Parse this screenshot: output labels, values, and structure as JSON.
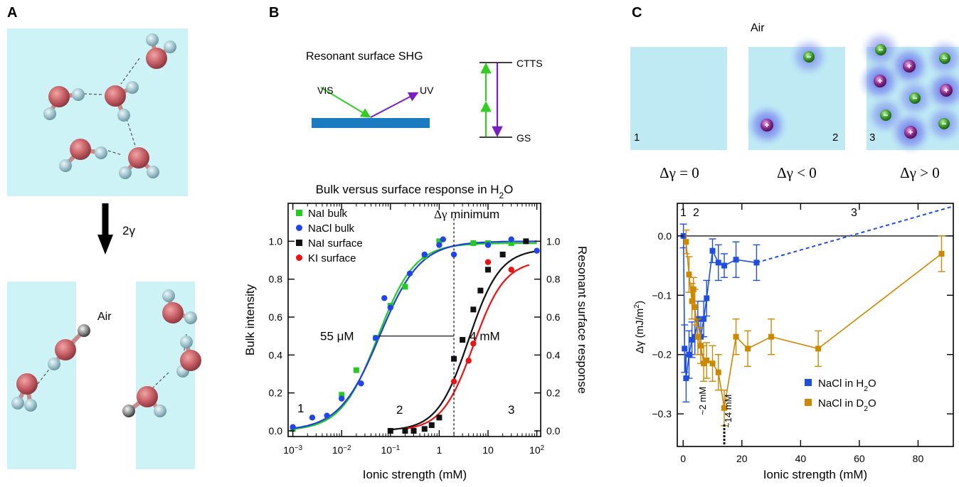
{
  "panels": {
    "a": {
      "label": "A",
      "arrow_label": "2γ",
      "air_label": "Air"
    },
    "b": {
      "label": "B",
      "schematic": {
        "title": "Resonant surface SHG",
        "vis": "VIS",
        "uv": "UV",
        "ctts": "CTTS",
        "gs": "GS"
      }
    },
    "c": {
      "label": "C",
      "air_label": "Air",
      "box_numbers": [
        "1",
        "2",
        "3"
      ],
      "gamma_labels": [
        "Δγ = 0",
        "Δγ < 0",
        "Δγ > 0"
      ],
      "ion_plus": "+",
      "ion_minus": "−"
    }
  },
  "chart_data": [
    {
      "type": "scatter",
      "title_parts": [
        "Bulk versus surface response in H",
        "2",
        "O"
      ],
      "xlabel": "Ionic strength (mM)",
      "ylabel": "Bulk intensity",
      "y2label": "Resonant surface response",
      "xscale": "log",
      "xlim": [
        0.0008,
        120
      ],
      "ylim": [
        -0.03,
        1.2
      ],
      "xticks": [
        0.001,
        0.01,
        0.1,
        1,
        10,
        100
      ],
      "xtick_labels": [
        [
          "10",
          "−3"
        ],
        [
          "10",
          "−2"
        ],
        [
          "10",
          "−1"
        ],
        [
          "1",
          ""
        ],
        [
          "10",
          ""
        ],
        [
          "10",
          "2"
        ]
      ],
      "yticks": [
        0,
        0.2,
        0.4,
        0.6,
        0.8,
        1.0
      ],
      "ytick_labels": [
        "0.0",
        "0.2",
        "0.4",
        "0.6",
        "0.8",
        "1.0"
      ],
      "legend_placement": "top-left",
      "series": [
        {
          "name": "NaI bulk",
          "marker": "square",
          "color": "#22cc22",
          "x": [
            0.001,
            0.01,
            0.02,
            0.05,
            0.1,
            0.2,
            0.5,
            1,
            5,
            10,
            30
          ],
          "y": [
            0.01,
            0.19,
            0.32,
            0.49,
            0.66,
            0.76,
            0.92,
            1.0,
            0.99,
            0.99,
            0.99
          ]
        },
        {
          "name": "NaCl bulk",
          "marker": "circle",
          "color": "#2244ee",
          "x": [
            0.001,
            0.0025,
            0.005,
            0.01,
            0.025,
            0.05,
            0.075,
            0.1,
            0.25,
            0.5,
            1,
            1.2,
            2,
            10,
            30,
            100
          ],
          "y": [
            0.02,
            0.07,
            0.08,
            0.17,
            0.25,
            0.49,
            0.7,
            0.65,
            0.83,
            0.93,
            0.98,
            1.01,
            0.93,
            0.98,
            1.01,
            0.95
          ]
        },
        {
          "name": "NaI surface",
          "marker": "square",
          "color": "#111111",
          "x": [
            0.1,
            0.2,
            0.3,
            0.5,
            0.7,
            1,
            2,
            3,
            5,
            7,
            10,
            20,
            60
          ],
          "y": [
            0.0,
            0.0,
            0.0,
            0.01,
            0.03,
            0.07,
            0.38,
            0.48,
            0.64,
            0.74,
            0.85,
            0.93,
            1.0
          ]
        },
        {
          "name": "KI surface",
          "marker": "circle",
          "color": "#ee1111",
          "x": [
            2,
            4,
            5,
            10,
            30
          ],
          "y": [
            0.26,
            0.37,
            0.46,
            0.89,
            0.85
          ]
        }
      ],
      "fits": [
        {
          "color": "#22cc22",
          "x0": 0.055,
          "n": 1.15,
          "top": 0.99,
          "xmin": 0.001,
          "xmax": 100
        },
        {
          "color": "#1f3fe0",
          "x0": 0.06,
          "n": 1.05,
          "top": 1.0,
          "xmin": 0.001,
          "xmax": 100
        },
        {
          "color": "#111111",
          "x0": 4,
          "n": 1.35,
          "top": 0.96,
          "xmin": 0.1,
          "xmax": 100
        },
        {
          "color": "#ee1111",
          "x0": 5,
          "n": 1.35,
          "top": 0.9,
          "xmin": 0.2,
          "xmax": 70
        }
      ],
      "minimum_line_x": 2,
      "half_line": {
        "x1": 0.055,
        "x2": 2,
        "y": 0.5
      },
      "annotations": {
        "min_prefix": "Δγ",
        "min_rest": " minimum",
        "left_value": "55 μM",
        "right_value": "4 mM",
        "regions": [
          "1",
          "2",
          "3"
        ]
      }
    },
    {
      "type": "line",
      "xlabel": "Ionic strength (mM)",
      "ylabel_parts": [
        "Δγ (mJ/m",
        "2",
        ")"
      ],
      "xlim": [
        -2,
        92
      ],
      "ylim": [
        -0.355,
        0.055
      ],
      "xticks": [
        0,
        20,
        40,
        60,
        80
      ],
      "xtick_labels": [
        "0",
        "20",
        "40",
        "60",
        "80"
      ],
      "yticks": [
        0,
        -0.1,
        -0.2,
        -0.3
      ],
      "ytick_labels": [
        "0.0",
        "−0.1",
        "−0.2",
        "−0.3"
      ],
      "legend_placement": "bottom-right",
      "zero_line": true,
      "series": [
        {
          "name_parts": [
            "NaCl in H",
            "2",
            "O"
          ],
          "color": "#1f4fe0",
          "x": [
            0.1,
            0.5,
            1,
            2,
            3,
            4,
            5,
            6,
            7,
            8,
            10,
            12,
            14,
            18,
            25
          ],
          "y": [
            0.0,
            -0.19,
            -0.24,
            -0.2,
            -0.175,
            -0.17,
            -0.14,
            -0.17,
            -0.14,
            -0.105,
            -0.025,
            -0.045,
            -0.05,
            -0.04,
            -0.045
          ],
          "err": [
            0.02,
            0.04,
            0.04,
            0.04,
            0.03,
            0.03,
            0.03,
            0.03,
            0.03,
            0.03,
            0.02,
            0.03,
            0.02,
            0.03,
            0.03
          ],
          "extension": {
            "x": [
              25,
              92
            ],
            "y": [
              -0.045,
              0.05
            ]
          }
        },
        {
          "name_parts": [
            "NaCl in D",
            "2",
            "O"
          ],
          "color": "#cc8800",
          "x": [
            1,
            2,
            3,
            3.5,
            4,
            5,
            6,
            7,
            8,
            10,
            12,
            14,
            18,
            22,
            30,
            46,
            88
          ],
          "y": [
            -0.01,
            -0.065,
            -0.11,
            -0.09,
            -0.12,
            -0.17,
            -0.185,
            -0.215,
            -0.21,
            -0.215,
            -0.23,
            -0.29,
            -0.17,
            -0.19,
            -0.17,
            -0.19,
            -0.03
          ],
          "err": [
            0.02,
            0.03,
            0.03,
            0.02,
            0.03,
            0.03,
            0.03,
            0.03,
            0.03,
            0.03,
            0.03,
            0.03,
            0.03,
            0.03,
            0.03,
            0.03,
            0.03
          ]
        }
      ],
      "annotations": {
        "region_top": [
          "1",
          "2",
          "3"
        ],
        "mark_2mm": "~2 mM",
        "mark_14mm": "~14 mM",
        "min_line_x": 14
      }
    }
  ]
}
